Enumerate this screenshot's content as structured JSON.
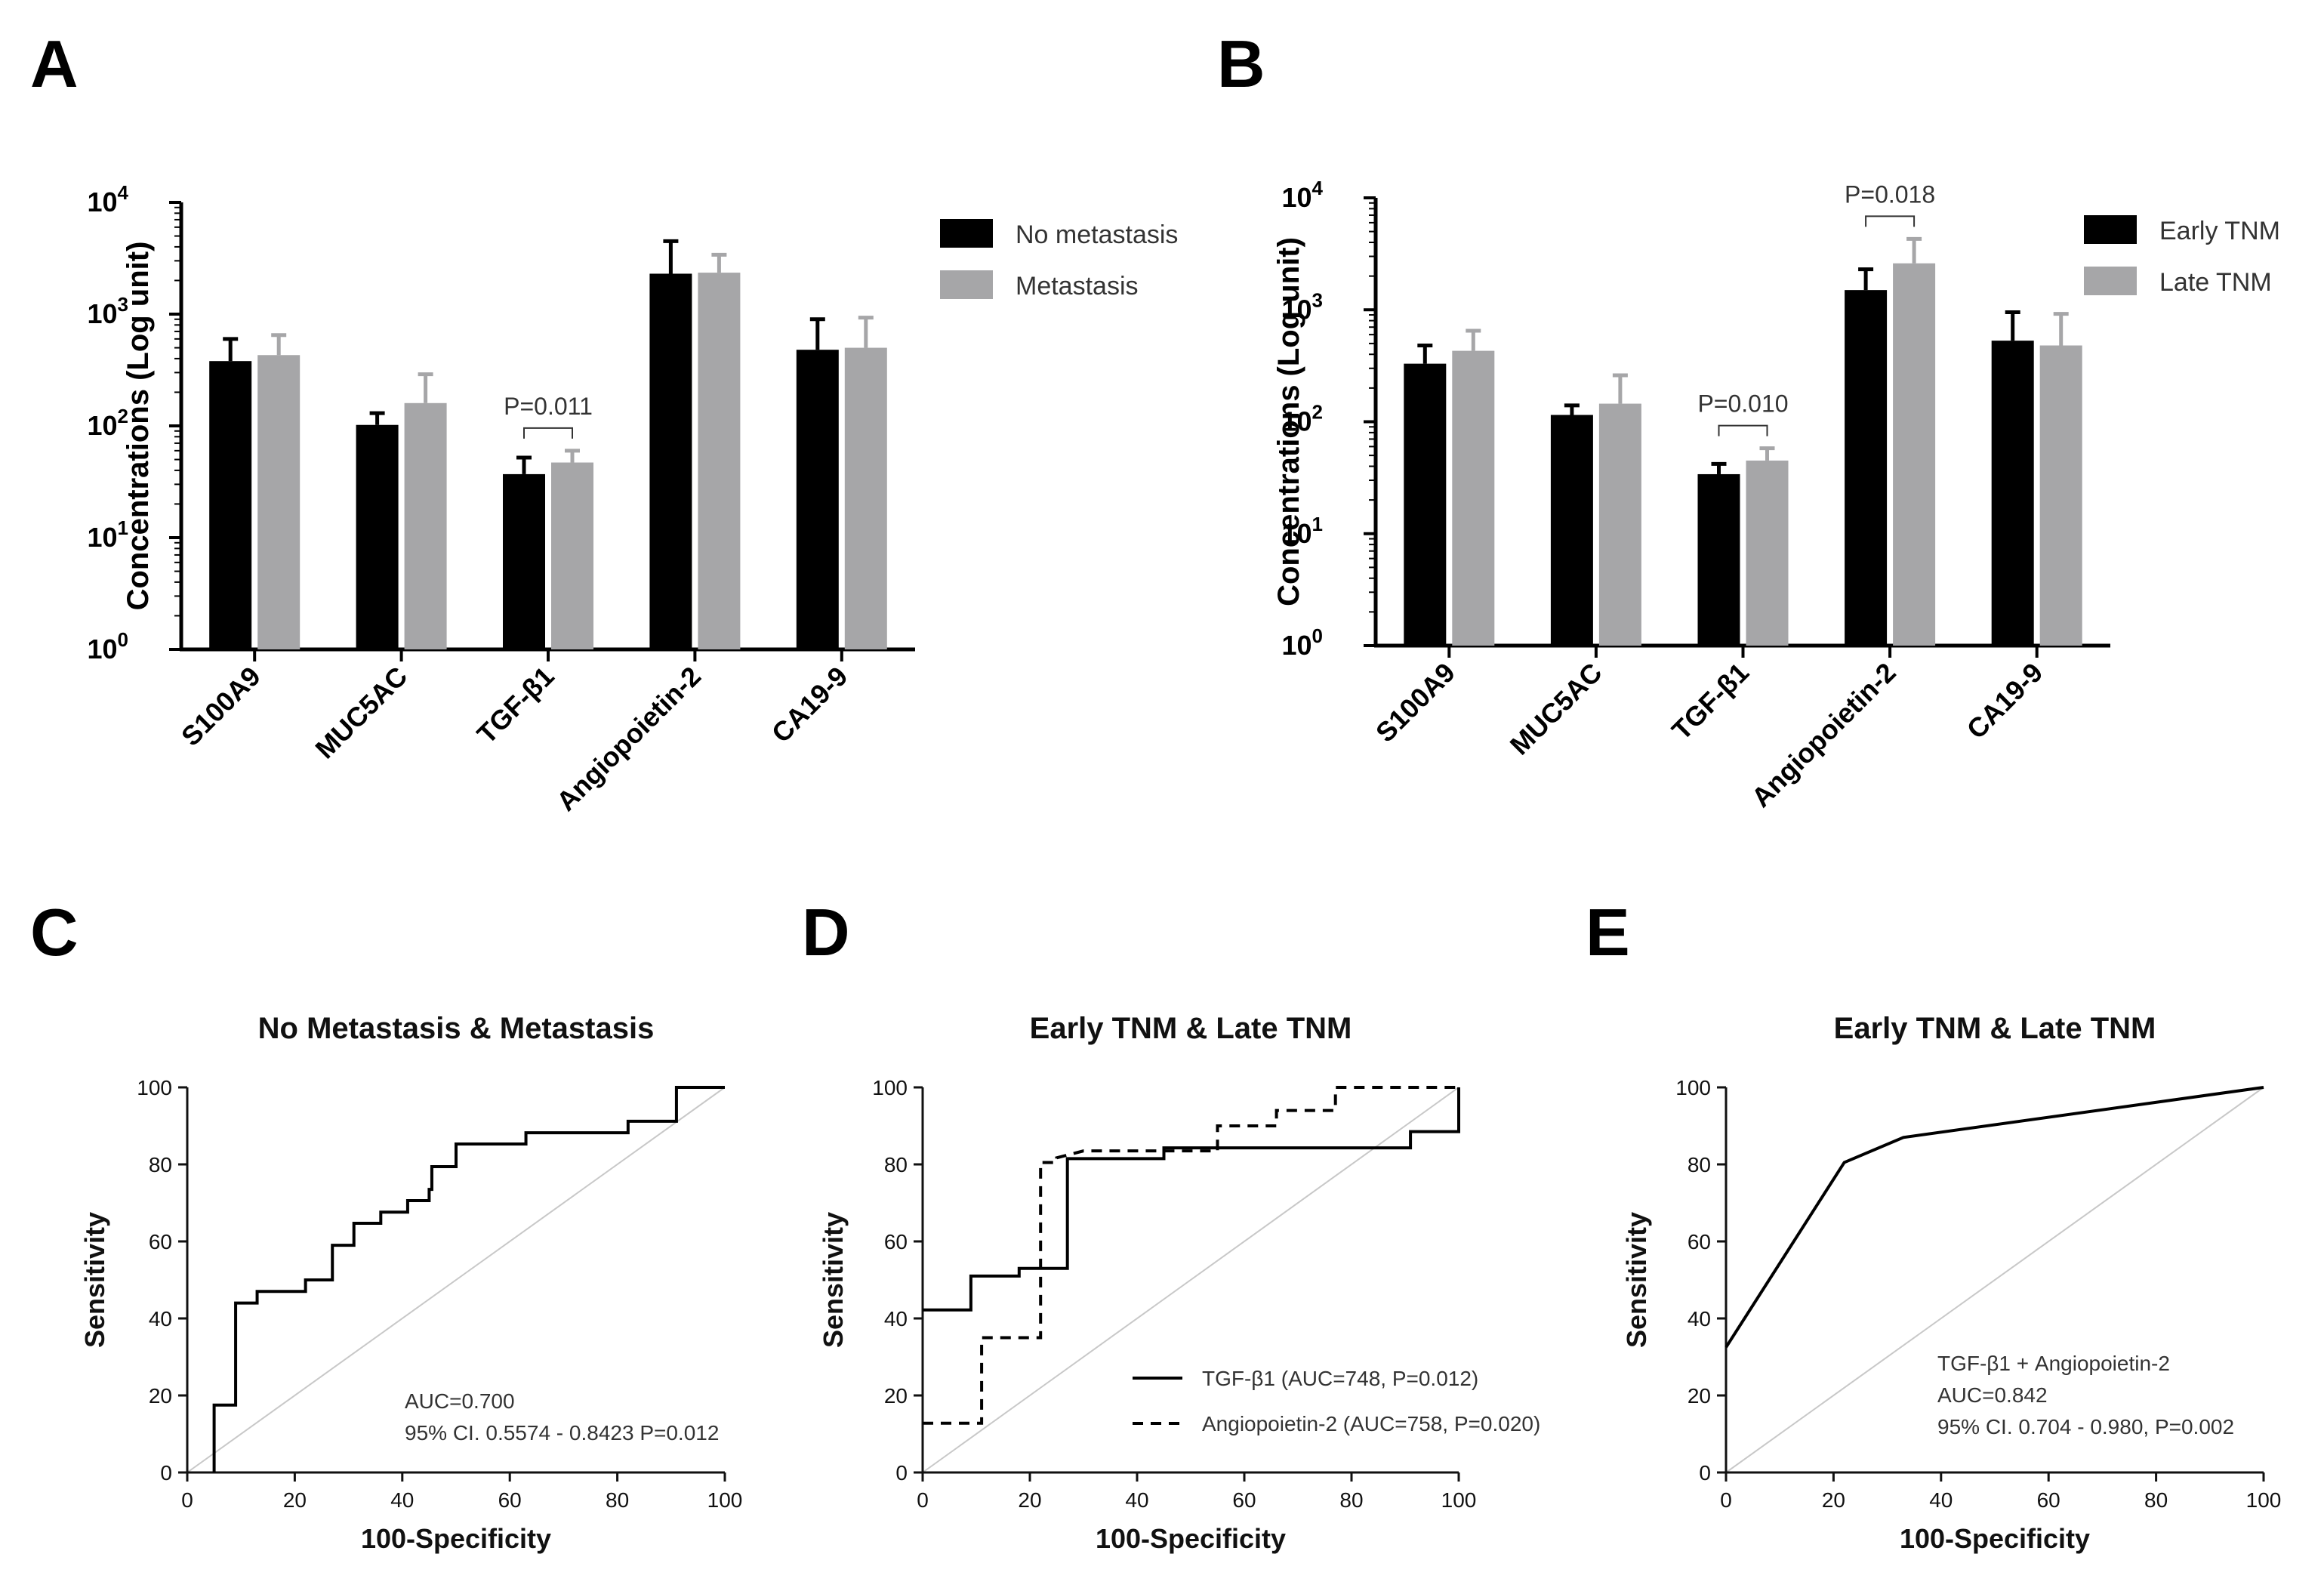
{
  "figure": {
    "panel_labels": [
      "A",
      "B",
      "C",
      "D",
      "E"
    ]
  },
  "chart_data": [
    {
      "id": "A",
      "type": "bar",
      "scale": "log10",
      "title": "",
      "ylabel": "Concentrations (Log unit)",
      "xlabel": "",
      "ylim": [
        1,
        10000
      ],
      "ytick_base": "10",
      "ytick_exponents": [
        "0",
        "1",
        "2",
        "3",
        "4"
      ],
      "categories": [
        "S100A9",
        "MUC5AC",
        "TGF-β1",
        "Angiopoietin-2",
        "CA19-9"
      ],
      "series": [
        {
          "name": "No metastasis",
          "color": "#000000",
          "values": [
            380,
            102,
            37,
            2300,
            480
          ],
          "error_upper": [
            600,
            130,
            52,
            4500,
            900
          ]
        },
        {
          "name": "Metastasis",
          "color": "#a6a6a8",
          "values": [
            430,
            160,
            47,
            2350,
            500
          ],
          "error_upper": [
            650,
            290,
            60,
            3400,
            930
          ]
        }
      ],
      "annotations": [
        {
          "text": "P=0.011",
          "category_index": 2
        }
      ]
    },
    {
      "id": "B",
      "type": "bar",
      "scale": "log10",
      "title": "",
      "ylabel": "Concentrations (Log unit)",
      "xlabel": "",
      "ylim": [
        1,
        10000
      ],
      "ytick_base": "10",
      "ytick_exponents": [
        "0",
        "1",
        "2",
        "3",
        "4"
      ],
      "categories": [
        "S100A9",
        "MUC5AC",
        "TGF-β1",
        "Angiopoietin-2",
        "CA19-9"
      ],
      "series": [
        {
          "name": "Early TNM",
          "color": "#000000",
          "values": [
            330,
            115,
            34,
            1500,
            530
          ],
          "error_upper": [
            480,
            140,
            42,
            2300,
            950
          ]
        },
        {
          "name": "Late TNM",
          "color": "#a6a6a8",
          "values": [
            430,
            145,
            45,
            2600,
            480
          ],
          "error_upper": [
            650,
            260,
            58,
            4300,
            920
          ]
        }
      ],
      "annotations": [
        {
          "text": "P=0.010",
          "category_index": 2
        },
        {
          "text": "P=0.018",
          "category_index": 3
        }
      ]
    },
    {
      "id": "C",
      "type": "line",
      "title": "No Metastasis & Metastasis",
      "xlabel": "100-Specificity",
      "ylabel": "Sensitivity",
      "xlim": [
        0,
        100
      ],
      "ylim": [
        0,
        100
      ],
      "xticks": [
        0,
        20,
        40,
        60,
        80,
        100
      ],
      "yticks": [
        0,
        20,
        40,
        60,
        80,
        100
      ],
      "reference_line": true,
      "series": [
        {
          "name": "ROC",
          "dash": false,
          "points": [
            [
              5,
              0
            ],
            [
              5,
              17.5
            ],
            [
              9,
              17.5
            ],
            [
              9,
              44
            ],
            [
              13,
              44
            ],
            [
              13,
              47
            ],
            [
              22,
              47
            ],
            [
              22,
              50
            ],
            [
              27,
              50
            ],
            [
              27,
              59
            ],
            [
              31,
              59
            ],
            [
              31,
              64.7
            ],
            [
              36,
              64.7
            ],
            [
              36,
              67.6
            ],
            [
              41,
              67.6
            ],
            [
              41,
              70.6
            ],
            [
              45,
              70.6
            ],
            [
              45,
              73.5
            ],
            [
              45.5,
              73.5
            ],
            [
              45.5,
              79.4
            ],
            [
              50,
              79.4
            ],
            [
              50,
              85.3
            ],
            [
              63,
              85.3
            ],
            [
              63,
              88.2
            ],
            [
              82,
              88.2
            ],
            [
              82,
              91.2
            ],
            [
              91,
              91.2
            ],
            [
              91,
              100
            ],
            [
              100,
              100
            ]
          ]
        }
      ],
      "annotations": [
        "AUC=0.700",
        "95% CI. 0.5574 - 0.8423 P=0.012"
      ]
    },
    {
      "id": "D",
      "type": "line",
      "title": "Early TNM & Late TNM",
      "xlabel": "100-Specificity",
      "ylabel": "Sensitivity",
      "xlim": [
        0,
        100
      ],
      "ylim": [
        0,
        100
      ],
      "xticks": [
        0,
        20,
        40,
        60,
        80,
        100
      ],
      "yticks": [
        0,
        20,
        40,
        60,
        80,
        100
      ],
      "reference_line": true,
      "series": [
        {
          "name": "TGF-β1 (AUC=748, P=0.012)",
          "dash": false,
          "points": [
            [
              0,
              42.2
            ],
            [
              9,
              42.2
            ],
            [
              9,
              51
            ],
            [
              18,
              51
            ],
            [
              18,
              53
            ],
            [
              27,
              53
            ],
            [
              27,
              81.5
            ],
            [
              45,
              81.5
            ],
            [
              45,
              84.3
            ],
            [
              91,
              84.3
            ],
            [
              91,
              88.5
            ],
            [
              100,
              88.5
            ],
            [
              100,
              100
            ]
          ]
        },
        {
          "name": "Angiopoietin-2 (AUC=758, P=0.020)",
          "dash": true,
          "points": [
            [
              0,
              12.8
            ],
            [
              11,
              12.8
            ],
            [
              11,
              35
            ],
            [
              21,
              35
            ],
            [
              22,
              35
            ],
            [
              22,
              80.5
            ],
            [
              25,
              80.5
            ],
            [
              25,
              81.7
            ],
            [
              30,
              83.5
            ],
            [
              55,
              83.5
            ],
            [
              55,
              90
            ],
            [
              66,
              90
            ],
            [
              66,
              94
            ],
            [
              77,
              94
            ],
            [
              77,
              100
            ],
            [
              100,
              100
            ]
          ]
        }
      ]
    },
    {
      "id": "E",
      "type": "line",
      "title": "Early TNM & Late TNM",
      "xlabel": "100-Specificity",
      "ylabel": "Sensitivity",
      "xlim": [
        0,
        100
      ],
      "ylim": [
        0,
        100
      ],
      "xticks": [
        0,
        20,
        40,
        60,
        80,
        100
      ],
      "yticks": [
        0,
        20,
        40,
        60,
        80,
        100
      ],
      "reference_line": true,
      "series": [
        {
          "name": "TGF-β1 + Angiopoietin-2",
          "dash": false,
          "points": [
            [
              0,
              32.5
            ],
            [
              22,
              80.5
            ],
            [
              33,
              87
            ],
            [
              100,
              100
            ]
          ]
        }
      ],
      "annotations": [
        "TGF-β1 + Angiopoietin-2",
        "AUC=0.842",
        "95% CI. 0.704 - 0.980, P=0.002"
      ]
    }
  ]
}
